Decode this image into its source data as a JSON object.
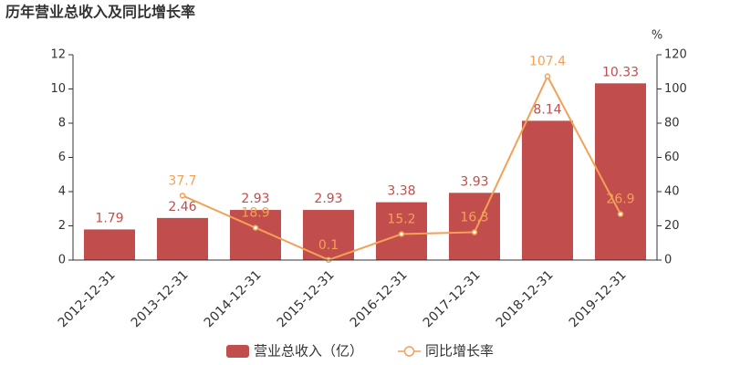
{
  "chart_data": {
    "type": "bar",
    "title": "历年营业总收入及同比增长率",
    "categories": [
      "2012-12-31",
      "2013-12-31",
      "2014-12-31",
      "2015-12-31",
      "2016-12-31",
      "2017-12-31",
      "2018-12-31",
      "2019-12-31"
    ],
    "series": [
      {
        "name": "营业总收入（亿）",
        "type": "bar",
        "color": "#c14e4c",
        "values": [
          1.79,
          2.46,
          2.93,
          2.93,
          3.38,
          3.93,
          8.14,
          10.33
        ]
      },
      {
        "name": "同比增长率",
        "type": "line",
        "axis": "y2",
        "color": "#f3a157",
        "values": [
          null,
          37.7,
          18.9,
          0.1,
          15.2,
          16.3,
          107.4,
          26.9
        ]
      }
    ],
    "ylim": [
      0,
      12
    ],
    "yticks": [
      0,
      2,
      4,
      6,
      8,
      10,
      12
    ],
    "y2_label": "%",
    "y2lim": [
      0,
      120
    ],
    "y2ticks": [
      0,
      20,
      40,
      60,
      80,
      100,
      120
    ],
    "legend": "bottom"
  }
}
